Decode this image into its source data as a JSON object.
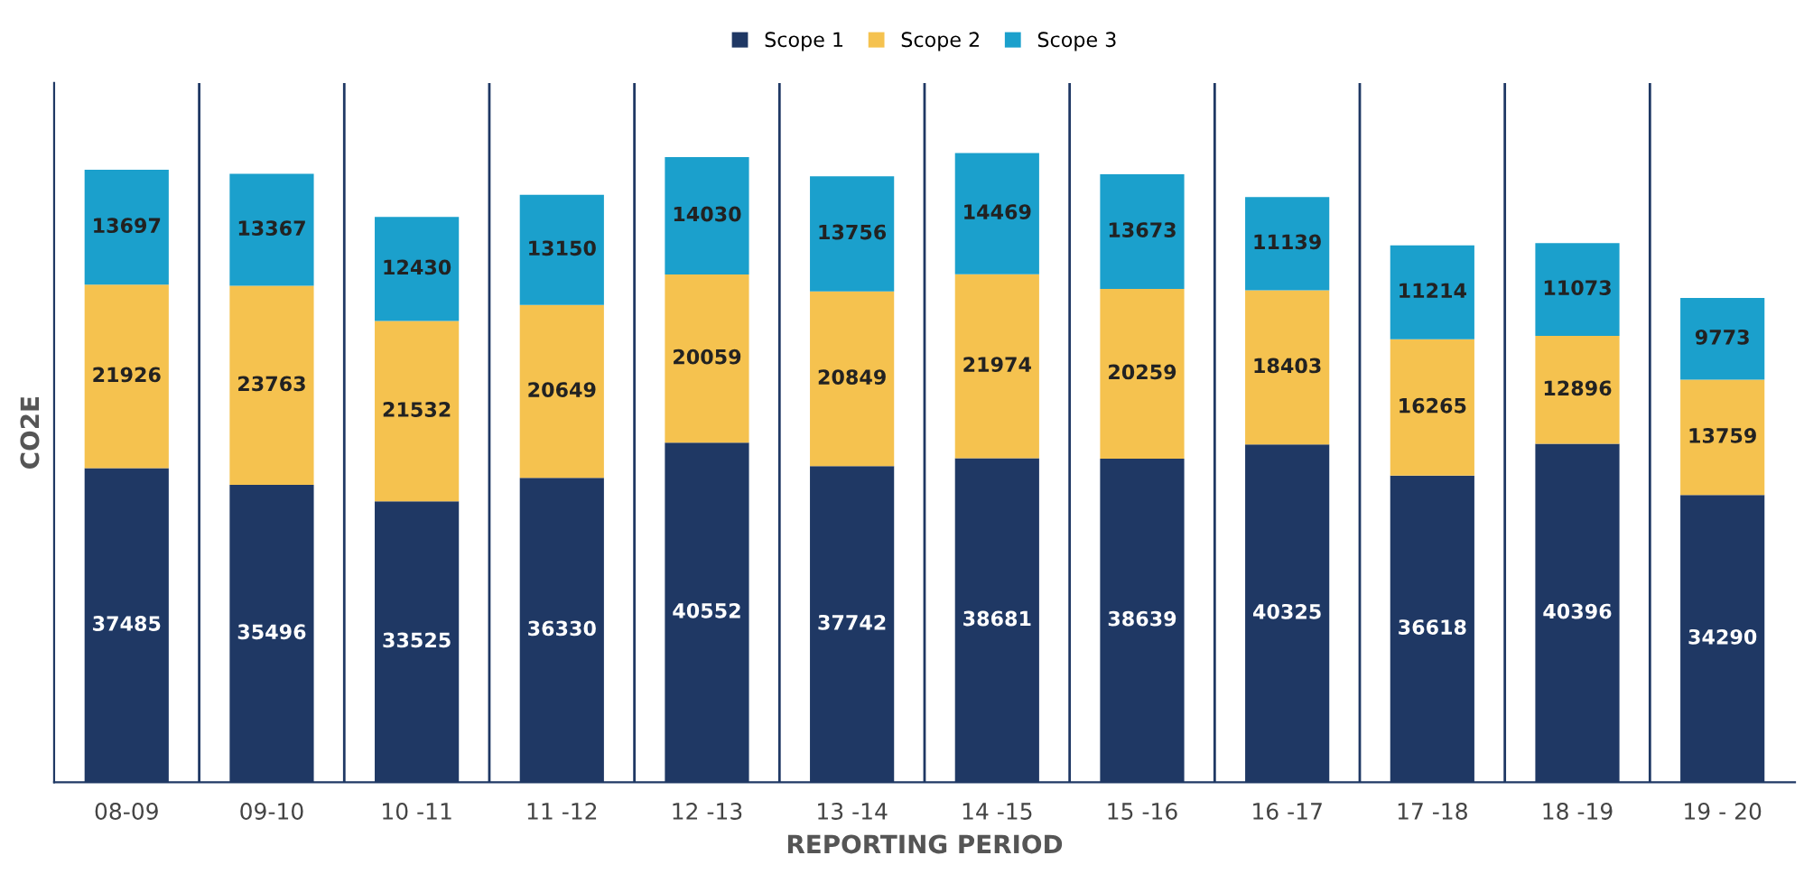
{
  "chart_data": {
    "type": "bar",
    "stacked": true,
    "xlabel": "REPORTING PERIOD",
    "ylabel": "CO2E",
    "categories": [
      "08-09",
      "09-10",
      "10 -11",
      "11 -12",
      "12 -13",
      "13 -14",
      "14 -15",
      "15 -16",
      "16 -17",
      "17 -18",
      "18 -19",
      "19 - 20"
    ],
    "series": [
      {
        "name": "Scope 1",
        "color": "#1f3864",
        "values": [
          37485,
          35496,
          33525,
          36330,
          40552,
          37742,
          38681,
          38639,
          40325,
          36618,
          40396,
          34290
        ]
      },
      {
        "name": "Scope 2",
        "color": "#f5c24f",
        "values": [
          21926,
          23763,
          21532,
          20649,
          20059,
          20849,
          21974,
          20259,
          18403,
          16265,
          12896,
          13759
        ]
      },
      {
        "name": "Scope 3",
        "color": "#1ba0cc",
        "values": [
          13697,
          13367,
          12430,
          13150,
          14030,
          13756,
          14469,
          13673,
          11139,
          11214,
          11073,
          9773
        ]
      }
    ],
    "data_labels": true,
    "legend": "top",
    "grid": "x"
  }
}
